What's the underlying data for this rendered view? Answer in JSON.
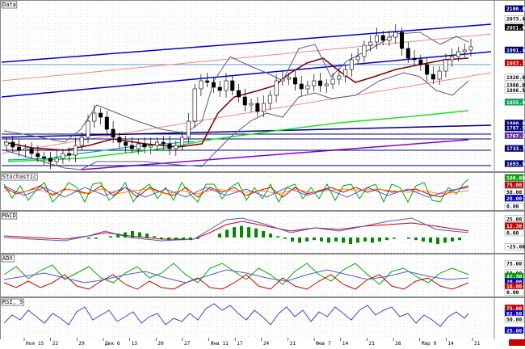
{
  "panels": {
    "price": {
      "title": "Data"
    },
    "stoch": {
      "title": "Stochastic"
    },
    "macd": {
      "title": "MACD"
    },
    "adx": {
      "title": "ADX"
    },
    "rsi": {
      "title": "RSI, 9"
    }
  },
  "price_scale": [
    {
      "label": "2100.00",
      "value": 2100,
      "bg": "#000080",
      "fg": "#ffffff"
    },
    {
      "label": "2073.49",
      "value": 2073.49,
      "bg": "#ffffff",
      "fg": "#000000"
    },
    {
      "label": "2051.00",
      "value": 2051,
      "bg": "#000000",
      "fg": "#ffffff"
    },
    {
      "label": "1991.46",
      "value": 1991.46,
      "bg": "#000080",
      "fg": "#ffffff"
    },
    {
      "label": "1957.7",
      "value": 1957.7,
      "bg": "#cc0000",
      "fg": "#ffffff"
    },
    {
      "label": "1920.00",
      "value": 1920,
      "bg": "#ffffff",
      "fg": "#000000"
    },
    {
      "label": "1900.00",
      "value": 1900,
      "bg": "#ffffff",
      "fg": "#000000"
    },
    {
      "label": "1886.50",
      "value": 1886.5,
      "bg": "#ffffff",
      "fg": "#000000"
    },
    {
      "label": "1855.00",
      "value": 1855,
      "bg": "#00aa55",
      "fg": "#ffffff"
    },
    {
      "label": "1800.00",
      "value": 1800,
      "bg": "#000080",
      "fg": "#ffffff"
    },
    {
      "label": "1787.50",
      "value": 1787.5,
      "bg": "#000080",
      "fg": "#ffffff"
    },
    {
      "label": "1767.20",
      "value": 1767.2,
      "bg": "#6633aa",
      "fg": "#ffffff"
    },
    {
      "label": "1733.71",
      "value": 1733.71,
      "bg": "#000080",
      "fg": "#ffffff"
    },
    {
      "label": "1693.80",
      "value": 1693.8,
      "bg": "#000080",
      "fg": "#ffffff"
    }
  ],
  "stoch_scale": [
    {
      "label": "100.00",
      "value": 100,
      "bg": "#00aa00",
      "fg": "#ffffff"
    },
    {
      "label": "75.00",
      "value": 75,
      "bg": "#cc0000",
      "fg": "#ffffff"
    },
    {
      "label": "50.00",
      "value": 50,
      "bg": "#ffffff",
      "fg": "#000000"
    },
    {
      "label": "28.00",
      "value": 28,
      "bg": "#0000cc",
      "fg": "#ffffff"
    },
    {
      "label": "0.00",
      "value": 0,
      "bg": "#ffffff",
      "fg": "#000000"
    }
  ],
  "macd_scale": [
    {
      "label": "25.00",
      "value": 25,
      "bg": "#ffffff",
      "fg": "#000000"
    },
    {
      "label": "12.30",
      "value": 12.3,
      "bg": "#cc0000",
      "fg": "#ffffff"
    },
    {
      "label": "0.00",
      "value": 0,
      "bg": "#ffffff",
      "fg": "#000000"
    },
    {
      "label": "-25.00",
      "value": -25,
      "bg": "#ffffff",
      "fg": "#000000"
    }
  ],
  "adx_scale": [
    {
      "label": "75.00",
      "value": 75,
      "bg": "#ffffff",
      "fg": "#000000"
    },
    {
      "label": "50.00",
      "value": 50,
      "bg": "#ffffff",
      "fg": "#000000"
    },
    {
      "label": "41.30",
      "value": 41.3,
      "bg": "#00aa00",
      "fg": "#ffffff"
    },
    {
      "label": "28.00",
      "value": 28,
      "bg": "#0000cc",
      "fg": "#ffffff"
    },
    {
      "label": "16.00",
      "value": 16,
      "bg": "#cc0000",
      "fg": "#ffffff"
    },
    {
      "label": "0.00",
      "value": 0,
      "bg": "#ffffff",
      "fg": "#000000"
    }
  ],
  "rsi_scale": [
    {
      "label": "75.00",
      "value": 75,
      "bg": "#cc0000",
      "fg": "#ffffff"
    },
    {
      "label": "62.50",
      "value": 62.5,
      "bg": "#0000cc",
      "fg": "#ffffff"
    },
    {
      "label": "50.00",
      "value": 50,
      "bg": "#ffffff",
      "fg": "#000000"
    },
    {
      "label": "25.00",
      "value": 25,
      "bg": "#0000cc",
      "fg": "#ffffff"
    }
  ],
  "date_labels": [
    "Ноя 15",
    "22",
    "29",
    "Дек 6",
    "13",
    "20",
    "27",
    "Янв 11",
    "17",
    "24",
    "31",
    "Фев 7",
    "14",
    "21",
    "28",
    "Мар 9",
    "14",
    "21"
  ],
  "colors": {
    "grid": "#b8b8b8",
    "blue": "#0000cc",
    "navy": "#000080",
    "red": "#cc0000",
    "green": "#00aa00",
    "purple": "#8800cc",
    "maroon": "#800000",
    "orange": "#ff8800",
    "bright_green": "#22dd22"
  }
}
